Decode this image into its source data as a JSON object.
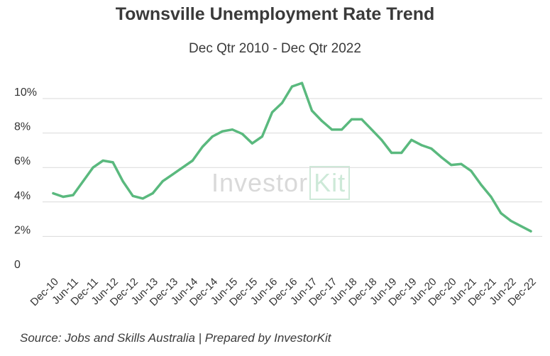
{
  "chart_data": {
    "type": "line",
    "title": "Townsville Unemployment Rate Trend",
    "subtitle": "Dec Qtr 2010 - Dec Qtr 2022",
    "source": "Source: Jobs and Skills Australia | Prepared by InvestorKit",
    "watermark": {
      "part1": "Investor",
      "part2": "Kit"
    },
    "xlabel": "",
    "ylabel": "",
    "ylim": [
      0,
      10.8
    ],
    "y_ticks": [
      0,
      2,
      4,
      6,
      8,
      10
    ],
    "y_tick_labels": [
      "0",
      "2%",
      "4%",
      "6%",
      "8%",
      "10%"
    ],
    "x_tick_labels": [
      "Dec-10",
      "Jun-11",
      "Dec-11",
      "Jun-12",
      "Dec-12",
      "Jun-13",
      "Dec-13",
      "Jun-14",
      "Dec-14",
      "Jun-15",
      "Dec-15",
      "Jun-16",
      "Dec-16",
      "Jun-17",
      "Dec-17",
      "Jun-18",
      "Dec-18",
      "Jun-19",
      "Dec-19",
      "Jun-20",
      "Dec-20",
      "Jun-21",
      "Dec-21",
      "Jun-22",
      "Dec-22"
    ],
    "x": [
      "Dec-10",
      "Mar-11",
      "Jun-11",
      "Sep-11",
      "Dec-11",
      "Mar-12",
      "Jun-12",
      "Sep-12",
      "Dec-12",
      "Mar-13",
      "Jun-13",
      "Sep-13",
      "Dec-13",
      "Mar-14",
      "Jun-14",
      "Sep-14",
      "Dec-14",
      "Mar-15",
      "Jun-15",
      "Sep-15",
      "Dec-15",
      "Mar-16",
      "Jun-16",
      "Sep-16",
      "Dec-16",
      "Mar-17",
      "Jun-17",
      "Sep-17",
      "Dec-17",
      "Mar-18",
      "Jun-18",
      "Sep-18",
      "Dec-18",
      "Mar-19",
      "Jun-19",
      "Sep-19",
      "Dec-19",
      "Mar-20",
      "Jun-20",
      "Sep-20",
      "Dec-20",
      "Mar-21",
      "Jun-21",
      "Sep-21",
      "Dec-21",
      "Mar-22",
      "Jun-22",
      "Sep-22",
      "Dec-22"
    ],
    "series": [
      {
        "name": "",
        "color": "#5ab97e",
        "values": [
          4.5,
          4.3,
          4.4,
          5.2,
          6.0,
          6.4,
          6.3,
          5.2,
          4.35,
          4.2,
          4.5,
          5.2,
          5.6,
          6.0,
          6.4,
          7.2,
          7.8,
          8.1,
          8.2,
          7.95,
          7.4,
          7.8,
          9.2,
          9.75,
          10.7,
          10.9,
          9.3,
          8.7,
          8.2,
          8.2,
          8.8,
          8.8,
          8.2,
          7.6,
          6.85,
          6.85,
          7.6,
          7.3,
          7.1,
          6.6,
          6.15,
          6.2,
          5.8,
          5.0,
          4.3,
          3.35,
          2.9,
          2.6,
          2.3
        ]
      }
    ],
    "grid": {
      "horizontal": true,
      "color": "#d9d9d9"
    },
    "legend": "none"
  }
}
